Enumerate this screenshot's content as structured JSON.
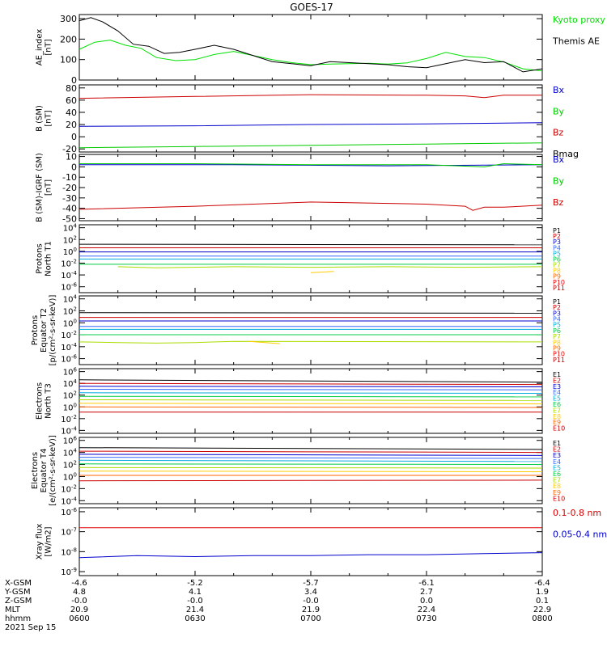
{
  "title": "GOES-17",
  "x_time_ticks": [
    "0600",
    "0630",
    "0700",
    "0730",
    "0800"
  ],
  "footer": {
    "row_labels": [
      "X-GSM",
      "Y-GSM",
      "Z-GSM",
      "MLT",
      "hhmm"
    ],
    "columns": [
      [
        "-4.6",
        "4.8",
        "-0.0",
        "20.9",
        "0600"
      ],
      [
        "-5.2",
        "4.1",
        "-0.0",
        "21.4",
        "0630"
      ],
      [
        "-5.7",
        "3.4",
        "-0.0",
        "21.9",
        "0700"
      ],
      [
        "-6.1",
        "2.7",
        "0.0",
        "22.4",
        "0730"
      ],
      [
        "-6.4",
        "1.9",
        "0.1",
        "22.9",
        "0800"
      ]
    ],
    "date": "2021 Sep 15"
  },
  "chart_data": [
    {
      "type": "line",
      "ylabel": [
        "AE_index",
        "[nT]"
      ],
      "yticks": [
        "0",
        "100",
        "200",
        "300"
      ],
      "ylim": [
        0,
        320
      ],
      "x_range": [
        0,
        120
      ],
      "series": [
        {
          "name": "Kyoto proxy AE",
          "color": "#00e000",
          "x": [
            0,
            4,
            8,
            12,
            16,
            20,
            25,
            30,
            35,
            40,
            45,
            50,
            55,
            60,
            65,
            70,
            75,
            80,
            85,
            90,
            95,
            100,
            105,
            110,
            115,
            120
          ],
          "values": [
            150,
            185,
            195,
            170,
            155,
            110,
            95,
            100,
            125,
            140,
            120,
            100,
            85,
            75,
            78,
            80,
            82,
            78,
            84,
            105,
            135,
            115,
            110,
            88,
            55,
            45
          ]
        },
        {
          "name": "Themis AE",
          "color": "#000000",
          "x": [
            0,
            3,
            6,
            10,
            14,
            18,
            22,
            26,
            30,
            35,
            40,
            45,
            50,
            55,
            60,
            65,
            70,
            75,
            80,
            85,
            90,
            95,
            100,
            105,
            110,
            115,
            120
          ],
          "values": [
            290,
            305,
            285,
            240,
            175,
            165,
            130,
            135,
            150,
            170,
            150,
            120,
            90,
            80,
            70,
            90,
            85,
            80,
            75,
            65,
            60,
            80,
            100,
            85,
            90,
            40,
            55
          ]
        }
      ]
    },
    {
      "type": "line",
      "ylabel": [
        "B (SM)",
        "[nT]"
      ],
      "yticks": [
        "-20",
        "0",
        "20",
        "40",
        "60",
        "80"
      ],
      "ylim": [
        -25,
        85
      ],
      "x_range": [
        0,
        120
      ],
      "series": [
        {
          "name": "Bx",
          "color": "#0000cc",
          "x": [
            0,
            30,
            60,
            90,
            120
          ],
          "values": [
            17,
            18,
            20,
            21,
            23
          ]
        },
        {
          "name": "By",
          "color": "#00cc00",
          "x": [
            0,
            30,
            60,
            90,
            120
          ],
          "values": [
            -18,
            -16,
            -14,
            -12,
            -10
          ]
        },
        {
          "name": "Bz",
          "color": "#cc0000",
          "x": [
            0,
            30,
            60,
            90,
            100,
            105,
            110,
            120
          ],
          "values": [
            63,
            66,
            69,
            68,
            67,
            64,
            68,
            68
          ]
        },
        {
          "name": "Bmag",
          "color": "#000000",
          "x": [],
          "values": []
        }
      ]
    },
    {
      "type": "line",
      "ylabel": [
        "B (SM)-IGRF (SM)",
        "[nT]"
      ],
      "yticks": [
        "-50",
        "-40",
        "-30",
        "-20",
        "-10",
        "0",
        "10"
      ],
      "ylim": [
        -52,
        12
      ],
      "x_range": [
        0,
        120
      ],
      "series": [
        {
          "name": "Bx",
          "color": "#0000cc",
          "x": [
            0,
            40,
            80,
            120
          ],
          "values": [
            2,
            2,
            1,
            2
          ]
        },
        {
          "name": "By",
          "color": "#00cc00",
          "x": [
            0,
            30,
            60,
            90,
            105,
            110,
            120
          ],
          "values": [
            3,
            3,
            2,
            2,
            0,
            3,
            2
          ]
        },
        {
          "name": "Bz",
          "color": "#cc0000",
          "x": [
            0,
            30,
            60,
            90,
            100,
            102,
            105,
            110,
            120
          ],
          "values": [
            -41,
            -38,
            -34,
            -36,
            -38,
            -42,
            -39,
            -39,
            -37
          ]
        }
      ]
    },
    {
      "type": "line",
      "log": true,
      "ylabel": [
        "Protons",
        "North T1"
      ],
      "yticks_exp": [
        -6,
        -4,
        -2,
        0,
        2,
        4
      ],
      "ylim_exp": [
        -7,
        4.5
      ],
      "x_range": [
        0,
        120
      ],
      "series": [
        {
          "name": "P1",
          "color": "#000000",
          "x": [
            0,
            120
          ],
          "values": [
            1.2,
            1.1
          ]
        },
        {
          "name": "P2",
          "color": "#cc0000",
          "x": [
            0,
            120
          ],
          "values": [
            0.6,
            0.6
          ]
        },
        {
          "name": "P3",
          "color": "#0000cc",
          "x": [
            0,
            120
          ],
          "values": [
            -0.1,
            -0.1
          ]
        },
        {
          "name": "P4",
          "color": "#3366ff",
          "x": [
            0,
            120
          ],
          "values": [
            -0.8,
            -0.8
          ]
        },
        {
          "name": "P5",
          "color": "#00aadd",
          "x": [
            0,
            120
          ],
          "values": [
            -1.3,
            -1.3
          ]
        },
        {
          "name": "P6",
          "color": "#00cc44",
          "x": [
            0,
            120
          ],
          "values": [
            -2.2,
            -2.2
          ]
        },
        {
          "name": "P7",
          "color": "#aadd00",
          "x": [
            10,
            20,
            40,
            60,
            80,
            100,
            120
          ],
          "values": [
            -2.6,
            -2.8,
            -2.6,
            -2.7,
            -2.6,
            -2.7,
            -2.6
          ]
        },
        {
          "name": "P8",
          "color": "#ffcc00",
          "x": [
            60,
            66
          ],
          "values": [
            -3.6,
            -3.4
          ]
        },
        {
          "name": "P9",
          "color": "#ff6600",
          "x": [],
          "values": []
        },
        {
          "name": "P10",
          "color": "#ee0000",
          "x": [],
          "values": []
        },
        {
          "name": "P11",
          "color": "#bb0000",
          "x": [],
          "values": []
        }
      ]
    },
    {
      "type": "line",
      "log": true,
      "ylabel": [
        "Protons",
        "Equator T2",
        "[p/(cm²-s-sr-keV)]"
      ],
      "yticks_exp": [
        -6,
        -4,
        -2,
        0,
        2,
        4
      ],
      "ylim_exp": [
        -7,
        4.5
      ],
      "x_range": [
        0,
        120
      ],
      "series": [
        {
          "name": "P1",
          "color": "#000000",
          "x": [
            0,
            120
          ],
          "values": [
            1.7,
            1.6
          ]
        },
        {
          "name": "P2",
          "color": "#cc0000",
          "x": [
            0,
            120
          ],
          "values": [
            0.9,
            0.9
          ]
        },
        {
          "name": "P3",
          "color": "#0000cc",
          "x": [
            0,
            120
          ],
          "values": [
            0.3,
            0.3
          ]
        },
        {
          "name": "P4",
          "color": "#3366ff",
          "x": [
            0,
            120
          ],
          "values": [
            -0.6,
            -0.6
          ]
        },
        {
          "name": "P5",
          "color": "#00aadd",
          "x": [
            0,
            120
          ],
          "values": [
            -1.1,
            -1.1
          ]
        },
        {
          "name": "P6",
          "color": "#00cc44",
          "x": [
            0,
            120
          ],
          "values": [
            -2.0,
            -2.0
          ]
        },
        {
          "name": "P7",
          "color": "#aadd00",
          "x": [
            0,
            10,
            20,
            30,
            40,
            120
          ],
          "values": [
            -3.2,
            -3.3,
            -3.4,
            -3.3,
            -3.1,
            -3.2
          ]
        },
        {
          "name": "P8",
          "color": "#ffcc00",
          "x": [
            44,
            52
          ],
          "values": [
            -3.1,
            -3.5
          ]
        },
        {
          "name": "P9",
          "color": "#ff6600",
          "x": [],
          "values": []
        },
        {
          "name": "P10",
          "color": "#ee0000",
          "x": [],
          "values": []
        },
        {
          "name": "P11",
          "color": "#bb0000",
          "x": [],
          "values": []
        }
      ]
    },
    {
      "type": "line",
      "log": true,
      "ylabel": [
        "Electrons",
        "North T3"
      ],
      "yticks_exp": [
        -4,
        -2,
        0,
        2,
        4,
        6
      ],
      "ylim_exp": [
        -4.5,
        6.5
      ],
      "x_range": [
        0,
        120
      ],
      "series": [
        {
          "name": "E1",
          "color": "#000000",
          "x": [
            0,
            120
          ],
          "values": [
            4.6,
            4.2
          ]
        },
        {
          "name": "E2",
          "color": "#cc0000",
          "x": [
            0,
            120
          ],
          "values": [
            4.0,
            3.8
          ]
        },
        {
          "name": "E3",
          "color": "#0000cc",
          "x": [
            0,
            120
          ],
          "values": [
            3.5,
            3.4
          ]
        },
        {
          "name": "E4",
          "color": "#3366ff",
          "x": [
            0,
            120
          ],
          "values": [
            3.0,
            2.9
          ]
        },
        {
          "name": "E5",
          "color": "#00aadd",
          "x": [
            0,
            120
          ],
          "values": [
            2.4,
            2.3
          ]
        },
        {
          "name": "E6",
          "color": "#00cc44",
          "x": [
            0,
            120
          ],
          "values": [
            1.8,
            1.7
          ]
        },
        {
          "name": "E7",
          "color": "#aadd00",
          "x": [
            0,
            120
          ],
          "values": [
            1.2,
            1.1
          ]
        },
        {
          "name": "E8",
          "color": "#ffcc00",
          "x": [
            0,
            120
          ],
          "values": [
            0.6,
            0.5
          ]
        },
        {
          "name": "E9",
          "color": "#ff6600",
          "x": [
            0,
            120
          ],
          "values": [
            0.0,
            -0.1
          ]
        },
        {
          "name": "E10",
          "color": "#cc0000",
          "x": [
            0,
            120
          ],
          "values": [
            -0.9,
            -0.9
          ]
        }
      ]
    },
    {
      "type": "line",
      "log": true,
      "ylabel": [
        "Electrons",
        "Equator T4",
        "[e/(cm²-s-sr-keV)]"
      ],
      "yticks_exp": [
        -4,
        -2,
        0,
        2,
        4,
        6
      ],
      "ylim_exp": [
        -4.5,
        6.5
      ],
      "x_range": [
        0,
        120
      ],
      "series": [
        {
          "name": "E1",
          "color": "#000000",
          "x": [
            0,
            120
          ],
          "values": [
            4.8,
            4.5
          ]
        },
        {
          "name": "E2",
          "color": "#cc0000",
          "x": [
            0,
            120
          ],
          "values": [
            4.2,
            4.0
          ]
        },
        {
          "name": "E3",
          "color": "#0000cc",
          "x": [
            0,
            120
          ],
          "values": [
            3.7,
            3.5
          ]
        },
        {
          "name": "E4",
          "color": "#3366ff",
          "x": [
            0,
            120
          ],
          "values": [
            3.2,
            3.0
          ]
        },
        {
          "name": "E5",
          "color": "#00aadd",
          "x": [
            0,
            120
          ],
          "values": [
            2.7,
            2.5
          ]
        },
        {
          "name": "E6",
          "color": "#00cc44",
          "x": [
            0,
            120
          ],
          "values": [
            2.1,
            2.0
          ]
        },
        {
          "name": "E7",
          "color": "#aadd00",
          "x": [
            0,
            120
          ],
          "values": [
            1.5,
            1.4
          ]
        },
        {
          "name": "E8",
          "color": "#ffcc00",
          "x": [
            0,
            120
          ],
          "values": [
            0.9,
            0.8
          ]
        },
        {
          "name": "E9",
          "color": "#ff6600",
          "x": [
            0,
            120
          ],
          "values": [
            0.2,
            0.2
          ]
        },
        {
          "name": "E10",
          "color": "#cc0000",
          "x": [
            0,
            120
          ],
          "values": [
            -0.7,
            -0.6
          ]
        }
      ]
    },
    {
      "type": "line",
      "log": true,
      "ylabel": [
        "Xray flux",
        "[W/m2]"
      ],
      "yticks_exp": [
        -9,
        -8,
        -7,
        -6
      ],
      "ylim_exp": [
        -9.2,
        -5.8
      ],
      "x_range": [
        0,
        120
      ],
      "series": [
        {
          "name": "0.1-0.8 nm",
          "color": "#dd0000",
          "x": [
            0,
            30,
            60,
            90,
            120
          ],
          "values": [
            -6.8,
            -6.8,
            -6.8,
            -6.8,
            -6.8
          ]
        },
        {
          "name": "0.05-0.4 nm",
          "color": "#0000cc",
          "x": [
            0,
            15,
            30,
            45,
            60,
            75,
            90,
            105,
            120
          ],
          "values": [
            -8.3,
            -8.2,
            -8.25,
            -8.2,
            -8.2,
            -8.15,
            -8.15,
            -8.1,
            -8.05
          ]
        }
      ]
    }
  ]
}
